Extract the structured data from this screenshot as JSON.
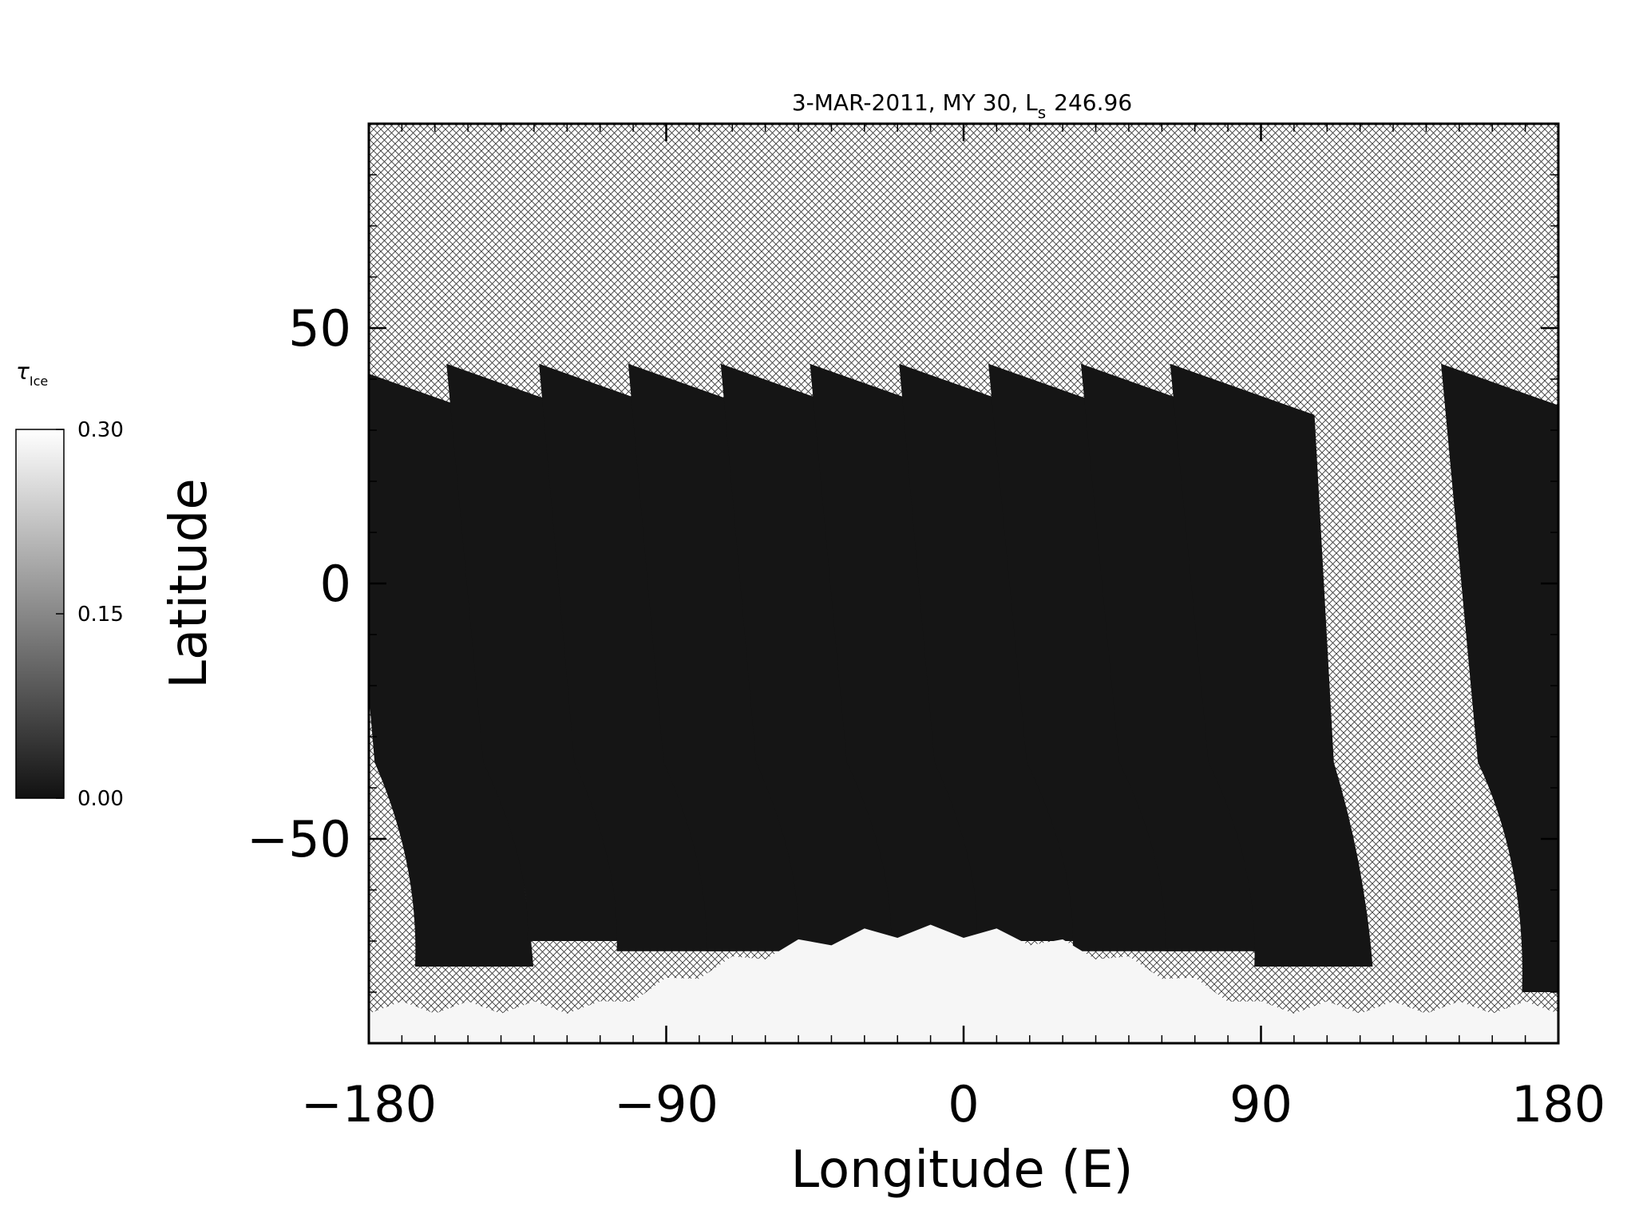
{
  "chart_data": {
    "type": "heatmap",
    "title": "3-MAR-2011, MY 30,  L",
    "title_subscript": "s",
    "title_value": "246.96",
    "xlabel": "Longitude (E)",
    "ylabel": "Latitude",
    "xlim": [
      -180,
      180
    ],
    "ylim": [
      -90,
      90
    ],
    "x_ticks": [
      -180,
      -90,
      0,
      90,
      180
    ],
    "x_tick_labels": [
      "−180",
      "−90",
      "0",
      "90",
      "180"
    ],
    "y_ticks": [
      -50,
      0,
      50
    ],
    "y_tick_labels": [
      "−50",
      "0",
      "50"
    ],
    "x_minor_step": 10,
    "y_minor_step": 10,
    "no_data_pattern": "crosshatch",
    "colorbar": {
      "label": "τ",
      "label_subscript": "Ice",
      "min": 0.0,
      "max": 0.3,
      "tick_values": [
        0.0,
        0.15,
        0.3
      ],
      "tick_labels": [
        "0.00",
        "0.15",
        "0.30"
      ],
      "color_low": "#111111",
      "color_high": "#ffffff"
    },
    "swaths": [
      {
        "lon_top": -177,
        "lat_top": 43,
        "lon_bottom": -167,
        "lat_bottom": -75
      },
      {
        "lon_top": -145,
        "lat_top": 43,
        "lon_bottom": -133,
        "lat_bottom": -70
      },
      {
        "lon_top": -117,
        "lat_top": 43,
        "lon_bottom": -106,
        "lat_bottom": -72
      },
      {
        "lon_top": -90,
        "lat_top": 43,
        "lon_bottom": -79,
        "lat_bottom": -72
      },
      {
        "lon_top": -62,
        "lat_top": 43,
        "lon_bottom": -51,
        "lat_bottom": -72
      },
      {
        "lon_top": -35,
        "lat_top": 43,
        "lon_bottom": -23,
        "lat_bottom": -72
      },
      {
        "lon_top": -8,
        "lat_top": 43,
        "lon_bottom": 3,
        "lat_bottom": -70
      },
      {
        "lon_top": 19,
        "lat_top": 43,
        "lon_bottom": 32,
        "lat_bottom": -72
      },
      {
        "lon_top": 47,
        "lat_top": 43,
        "lon_bottom": 60,
        "lat_bottom": -72
      },
      {
        "lon_top": 74,
        "lat_top": 43,
        "lon_bottom": 87,
        "lat_bottom": -75
      },
      {
        "lon_top": 156,
        "lat_top": 43,
        "lon_bottom": 168,
        "lat_bottom": -80
      }
    ],
    "polar_ice_region": {
      "lat_edge_min": -83,
      "lat_edge_max": -68,
      "tau": 0.3
    }
  }
}
